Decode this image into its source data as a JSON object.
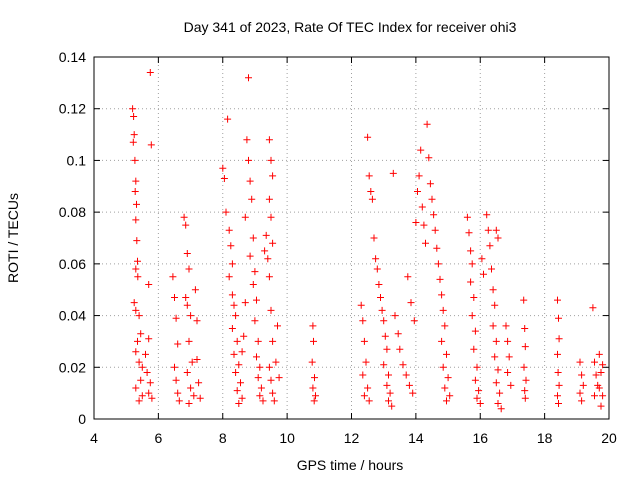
{
  "chart_data": {
    "type": "scatter",
    "title": "Day 341 of 2023, Rate Of TEC Index for receiver ohi3",
    "xlabel": "GPS time / hours",
    "ylabel": "ROTI / TECUs",
    "xlim": [
      4,
      20
    ],
    "ylim": [
      0,
      0.14
    ],
    "xticks": [
      4,
      6,
      8,
      10,
      12,
      14,
      16,
      18,
      20
    ],
    "yticks": [
      0,
      0.02,
      0.04,
      0.06,
      0.08,
      0.1,
      0.12,
      0.14
    ],
    "xtick_labels": [
      "4",
      "6",
      "8",
      "10",
      "12",
      "14",
      "16",
      "18",
      "20"
    ],
    "ytick_labels": [
      "0",
      "0.02",
      "0.04",
      "0.06",
      "0.08",
      "0.1",
      "0.12",
      "0.14"
    ],
    "grid": true,
    "marker": "plus",
    "color": "#ff0000",
    "series": [
      {
        "points": [
          [
            5.2,
            0.12
          ],
          [
            5.23,
            0.117
          ],
          [
            5.25,
            0.11
          ],
          [
            5.22,
            0.107
          ],
          [
            5.27,
            0.1
          ],
          [
            5.3,
            0.092
          ],
          [
            5.28,
            0.088
          ],
          [
            5.32,
            0.083
          ],
          [
            5.3,
            0.077
          ],
          [
            5.33,
            0.069
          ],
          [
            5.35,
            0.061
          ],
          [
            5.3,
            0.058
          ],
          [
            5.36,
            0.055
          ],
          [
            5.25,
            0.045
          ],
          [
            5.3,
            0.042
          ],
          [
            5.4,
            0.04
          ],
          [
            5.45,
            0.033
          ],
          [
            5.35,
            0.03
          ],
          [
            5.3,
            0.026
          ],
          [
            5.4,
            0.022
          ],
          [
            5.5,
            0.02
          ],
          [
            5.45,
            0.015
          ],
          [
            5.3,
            0.012
          ],
          [
            5.5,
            0.009
          ],
          [
            5.4,
            0.007
          ],
          [
            5.6,
            0.025
          ],
          [
            5.7,
            0.031
          ],
          [
            5.65,
            0.018
          ],
          [
            5.75,
            0.014
          ],
          [
            5.7,
            0.01
          ],
          [
            5.8,
            0.008
          ],
          [
            5.75,
            0.134
          ],
          [
            5.78,
            0.106
          ],
          [
            5.7,
            0.052
          ],
          [
            6.45,
            0.055
          ],
          [
            6.5,
            0.047
          ],
          [
            6.55,
            0.039
          ],
          [
            6.6,
            0.029
          ],
          [
            6.5,
            0.02
          ],
          [
            6.55,
            0.015
          ],
          [
            6.6,
            0.01
          ],
          [
            6.65,
            0.007
          ],
          [
            6.8,
            0.078
          ],
          [
            6.85,
            0.075
          ],
          [
            6.9,
            0.064
          ],
          [
            6.95,
            0.058
          ],
          [
            6.85,
            0.047
          ],
          [
            6.9,
            0.044
          ],
          [
            7.0,
            0.04
          ],
          [
            6.95,
            0.03
          ],
          [
            7.05,
            0.022
          ],
          [
            6.9,
            0.018
          ],
          [
            7.0,
            0.012
          ],
          [
            7.1,
            0.009
          ],
          [
            6.95,
            0.006
          ],
          [
            7.15,
            0.05
          ],
          [
            7.2,
            0.038
          ],
          [
            7.2,
            0.023
          ],
          [
            7.25,
            0.014
          ],
          [
            7.3,
            0.008
          ],
          [
            8.0,
            0.097
          ],
          [
            8.05,
            0.093
          ],
          [
            8.15,
            0.116
          ],
          [
            8.1,
            0.08
          ],
          [
            8.2,
            0.073
          ],
          [
            8.25,
            0.067
          ],
          [
            8.3,
            0.06
          ],
          [
            8.2,
            0.055
          ],
          [
            8.3,
            0.048
          ],
          [
            8.35,
            0.044
          ],
          [
            8.4,
            0.04
          ],
          [
            8.3,
            0.035
          ],
          [
            8.45,
            0.03
          ],
          [
            8.35,
            0.025
          ],
          [
            8.5,
            0.021
          ],
          [
            8.4,
            0.018
          ],
          [
            8.55,
            0.014
          ],
          [
            8.45,
            0.011
          ],
          [
            8.6,
            0.008
          ],
          [
            8.5,
            0.006
          ],
          [
            8.6,
            0.026
          ],
          [
            8.65,
            0.032
          ],
          [
            8.7,
            0.045
          ],
          [
            8.8,
            0.132
          ],
          [
            8.75,
            0.108
          ],
          [
            8.8,
            0.1
          ],
          [
            8.85,
            0.092
          ],
          [
            8.9,
            0.085
          ],
          [
            8.7,
            0.078
          ],
          [
            8.95,
            0.07
          ],
          [
            8.85,
            0.063
          ],
          [
            9.0,
            0.057
          ],
          [
            8.95,
            0.052
          ],
          [
            9.05,
            0.046
          ],
          [
            9.0,
            0.038
          ],
          [
            9.1,
            0.03
          ],
          [
            9.05,
            0.024
          ],
          [
            9.15,
            0.02
          ],
          [
            9.1,
            0.016
          ],
          [
            9.2,
            0.012
          ],
          [
            9.15,
            0.009
          ],
          [
            9.25,
            0.007
          ],
          [
            9.3,
            0.065
          ],
          [
            9.35,
            0.071
          ],
          [
            9.4,
            0.062
          ],
          [
            9.45,
            0.108
          ],
          [
            9.5,
            0.1
          ],
          [
            9.55,
            0.094
          ],
          [
            9.45,
            0.085
          ],
          [
            9.5,
            0.078
          ],
          [
            9.55,
            0.068
          ],
          [
            9.45,
            0.055
          ],
          [
            9.5,
            0.042
          ],
          [
            9.55,
            0.03
          ],
          [
            9.45,
            0.02
          ],
          [
            9.5,
            0.015
          ],
          [
            9.55,
            0.01
          ],
          [
            9.6,
            0.007
          ],
          [
            9.65,
            0.022
          ],
          [
            9.7,
            0.036
          ],
          [
            9.75,
            0.016
          ],
          [
            10.8,
            0.036
          ],
          [
            10.82,
            0.03
          ],
          [
            10.78,
            0.022
          ],
          [
            10.85,
            0.016
          ],
          [
            10.8,
            0.012
          ],
          [
            10.88,
            0.009
          ],
          [
            10.84,
            0.007
          ],
          [
            12.3,
            0.044
          ],
          [
            12.35,
            0.038
          ],
          [
            12.4,
            0.03
          ],
          [
            12.45,
            0.022
          ],
          [
            12.35,
            0.017
          ],
          [
            12.5,
            0.012
          ],
          [
            12.4,
            0.009
          ],
          [
            12.55,
            0.007
          ],
          [
            12.5,
            0.109
          ],
          [
            12.55,
            0.094
          ],
          [
            12.6,
            0.088
          ],
          [
            12.65,
            0.085
          ],
          [
            12.7,
            0.07
          ],
          [
            12.75,
            0.062
          ],
          [
            12.8,
            0.058
          ],
          [
            12.85,
            0.052
          ],
          [
            12.9,
            0.047
          ],
          [
            12.95,
            0.042
          ],
          [
            13.0,
            0.038
          ],
          [
            13.05,
            0.032
          ],
          [
            13.1,
            0.027
          ],
          [
            13.0,
            0.021
          ],
          [
            13.15,
            0.017
          ],
          [
            13.1,
            0.013
          ],
          [
            13.2,
            0.01
          ],
          [
            13.15,
            0.007
          ],
          [
            13.25,
            0.005
          ],
          [
            13.3,
            0.095
          ],
          [
            13.35,
            0.04
          ],
          [
            13.45,
            0.033
          ],
          [
            13.5,
            0.027
          ],
          [
            13.6,
            0.021
          ],
          [
            13.7,
            0.017
          ],
          [
            13.8,
            0.013
          ],
          [
            13.9,
            0.01
          ],
          [
            13.75,
            0.055
          ],
          [
            13.85,
            0.045
          ],
          [
            13.95,
            0.038
          ],
          [
            14.0,
            0.076
          ],
          [
            14.05,
            0.088
          ],
          [
            14.1,
            0.094
          ],
          [
            14.15,
            0.104
          ],
          [
            14.2,
            0.082
          ],
          [
            14.25,
            0.075
          ],
          [
            14.3,
            0.068
          ],
          [
            14.35,
            0.114
          ],
          [
            14.4,
            0.101
          ],
          [
            14.45,
            0.091
          ],
          [
            14.5,
            0.085
          ],
          [
            14.55,
            0.079
          ],
          [
            14.6,
            0.073
          ],
          [
            14.65,
            0.066
          ],
          [
            14.7,
            0.06
          ],
          [
            14.75,
            0.054
          ],
          [
            14.8,
            0.048
          ],
          [
            14.85,
            0.042
          ],
          [
            14.9,
            0.036
          ],
          [
            14.8,
            0.03
          ],
          [
            14.95,
            0.025
          ],
          [
            14.85,
            0.02
          ],
          [
            15.0,
            0.016
          ],
          [
            14.9,
            0.012
          ],
          [
            15.05,
            0.009
          ],
          [
            14.95,
            0.007
          ],
          [
            15.6,
            0.078
          ],
          [
            15.65,
            0.072
          ],
          [
            15.7,
            0.065
          ],
          [
            15.75,
            0.06
          ],
          [
            15.7,
            0.053
          ],
          [
            15.8,
            0.047
          ],
          [
            15.75,
            0.04
          ],
          [
            15.85,
            0.034
          ],
          [
            15.8,
            0.027
          ],
          [
            15.9,
            0.02
          ],
          [
            15.85,
            0.015
          ],
          [
            15.95,
            0.011
          ],
          [
            15.9,
            0.008
          ],
          [
            16.0,
            0.006
          ],
          [
            16.05,
            0.062
          ],
          [
            16.1,
            0.056
          ],
          [
            16.2,
            0.079
          ],
          [
            16.25,
            0.073
          ],
          [
            16.3,
            0.067
          ],
          [
            16.35,
            0.058
          ],
          [
            16.4,
            0.05
          ],
          [
            16.45,
            0.044
          ],
          [
            16.5,
            0.073
          ],
          [
            16.55,
            0.07
          ],
          [
            16.4,
            0.036
          ],
          [
            16.5,
            0.03
          ],
          [
            16.45,
            0.024
          ],
          [
            16.55,
            0.019
          ],
          [
            16.5,
            0.014
          ],
          [
            16.6,
            0.01
          ],
          [
            16.55,
            0.006
          ],
          [
            16.65,
            0.004
          ],
          [
            16.8,
            0.036
          ],
          [
            16.85,
            0.03
          ],
          [
            16.9,
            0.024
          ],
          [
            16.85,
            0.018
          ],
          [
            16.95,
            0.013
          ],
          [
            17.35,
            0.046
          ],
          [
            17.38,
            0.035
          ],
          [
            17.4,
            0.028
          ],
          [
            17.36,
            0.02
          ],
          [
            17.42,
            0.015
          ],
          [
            17.38,
            0.011
          ],
          [
            17.4,
            0.008
          ],
          [
            18.4,
            0.046
          ],
          [
            18.43,
            0.039
          ],
          [
            18.45,
            0.031
          ],
          [
            18.4,
            0.025
          ],
          [
            18.42,
            0.018
          ],
          [
            18.45,
            0.013
          ],
          [
            18.4,
            0.009
          ],
          [
            18.43,
            0.006
          ],
          [
            19.1,
            0.022
          ],
          [
            19.15,
            0.017
          ],
          [
            19.2,
            0.013
          ],
          [
            19.1,
            0.01
          ],
          [
            19.15,
            0.007
          ],
          [
            19.5,
            0.043
          ],
          [
            19.55,
            0.022
          ],
          [
            19.6,
            0.017
          ],
          [
            19.65,
            0.013
          ],
          [
            19.55,
            0.009
          ],
          [
            19.7,
            0.025
          ],
          [
            19.75,
            0.018
          ],
          [
            19.7,
            0.012
          ],
          [
            19.8,
            0.009
          ],
          [
            19.75,
            0.005
          ],
          [
            19.8,
            0.021
          ]
        ]
      }
    ]
  }
}
